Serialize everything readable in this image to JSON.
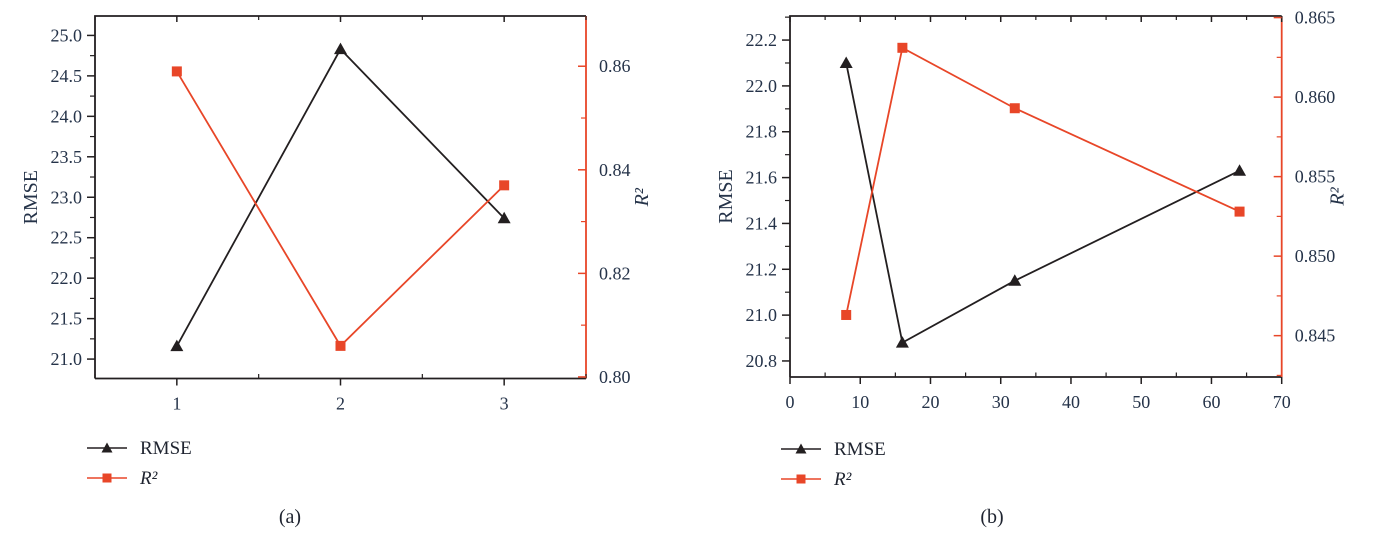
{
  "figure": {
    "background": "#ffffff",
    "tick_label_color": "#253349",
    "text_color": "#1f2430"
  },
  "chart_data": [
    {
      "type": "line",
      "caption": "(a)",
      "grid": "off",
      "legend_position": "bottom-left",
      "x_axis": {
        "ticks": [
          "1",
          "2",
          "3"
        ],
        "range": [
          0.5,
          3.5
        ],
        "minor_step": 0.5
      },
      "left_axis": {
        "label": "RMSE",
        "color": "#231f20",
        "ticks": [
          "21.0",
          "21.5",
          "22.0",
          "22.5",
          "23.0",
          "23.5",
          "24.0",
          "24.5",
          "25.0"
        ],
        "range": [
          20.76,
          25.24
        ],
        "minor_step": 0.25
      },
      "right_axis": {
        "label": "R²",
        "label_style": "italic",
        "color": "#e84628",
        "ticks": [
          "0.80",
          "0.82",
          "0.84",
          "0.86"
        ],
        "range": [
          0.7997,
          0.8697
        ],
        "minor_step": 0.01
      },
      "series": [
        {
          "name": "RMSE",
          "axis": "left",
          "marker": "triangle",
          "color": "#231f20",
          "x": [
            1,
            2,
            3
          ],
          "y": [
            21.16,
            24.83,
            22.74
          ]
        },
        {
          "name": "R²",
          "axis": "right",
          "marker": "square",
          "color": "#e84628",
          "x": [
            1,
            2,
            3
          ],
          "y": [
            0.859,
            0.806,
            0.837
          ]
        }
      ],
      "legend": [
        {
          "label": "RMSE",
          "style": "normal",
          "marker": "triangle",
          "color": "#231f20"
        },
        {
          "label": "R²",
          "style": "italic",
          "marker": "square",
          "color": "#e84628"
        }
      ]
    },
    {
      "type": "line",
      "caption": "(b)",
      "grid": "off",
      "legend_position": "bottom-left",
      "x_axis": {
        "ticks": [
          "0",
          "10",
          "20",
          "30",
          "40",
          "50",
          "60",
          "70"
        ],
        "range": [
          0,
          70
        ],
        "minor_step": 5
      },
      "left_axis": {
        "label": "RMSE",
        "color": "#231f20",
        "ticks": [
          "20.8",
          "21.0",
          "21.2",
          "21.4",
          "21.6",
          "21.8",
          "22.0",
          "22.2"
        ],
        "range": [
          20.73,
          22.305
        ],
        "minor_step": 0.1
      },
      "right_axis": {
        "label": "R²",
        "label_style": "italic",
        "color": "#e84628",
        "ticks": [
          "0.845",
          "0.850",
          "0.855",
          "0.860",
          "0.865"
        ],
        "range": [
          0.8424,
          0.8651
        ],
        "minor_step": 0.0025
      },
      "series": [
        {
          "name": "RMSE",
          "axis": "left",
          "marker": "triangle",
          "color": "#231f20",
          "x": [
            8,
            16,
            32,
            64
          ],
          "y": [
            22.1,
            20.88,
            21.15,
            21.63
          ]
        },
        {
          "name": "R²",
          "axis": "right",
          "marker": "square",
          "color": "#e84628",
          "x": [
            8,
            16,
            32,
            64
          ],
          "y": [
            0.8463,
            0.8631,
            0.8593,
            0.8528
          ]
        }
      ],
      "legend": [
        {
          "label": "RMSE",
          "style": "normal",
          "marker": "triangle",
          "color": "#231f20"
        },
        {
          "label": "R²",
          "style": "italic",
          "marker": "square",
          "color": "#e84628"
        }
      ]
    }
  ]
}
